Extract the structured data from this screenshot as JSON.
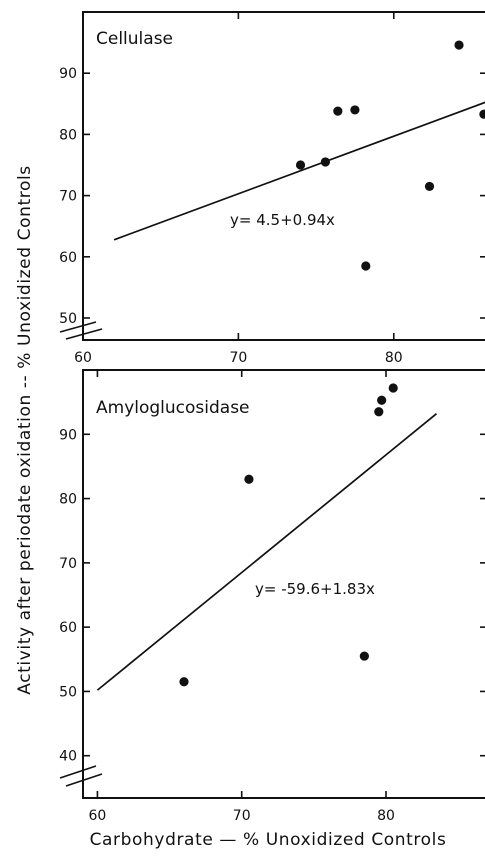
{
  "chart_data": [
    {
      "type": "scatter",
      "title": "Cellulase",
      "xlabel": "",
      "ylabel": "",
      "xlim": [
        60,
        86
      ],
      "ylim": [
        50,
        100
      ],
      "xticks": [
        60,
        70,
        80
      ],
      "yticks": [
        50,
        60,
        70,
        80,
        90
      ],
      "points": [
        {
          "x": 74.0,
          "y": 75.0
        },
        {
          "x": 75.6,
          "y": 75.5
        },
        {
          "x": 76.4,
          "y": 83.8
        },
        {
          "x": 77.5,
          "y": 84.0
        },
        {
          "x": 78.2,
          "y": 58.5
        },
        {
          "x": 82.3,
          "y": 71.5
        },
        {
          "x": 84.2,
          "y": 94.6
        },
        {
          "x": 85.8,
          "y": 83.3
        }
      ],
      "fit": {
        "equation": "y= 4.5+0.94x",
        "intercept": 4.5,
        "slope": 0.94,
        "x_range": [
          62,
          86
        ]
      },
      "axis_break": true,
      "grid": false
    },
    {
      "type": "scatter",
      "title": "Amyloglucosidase",
      "xlabel": "",
      "ylabel": "",
      "xlim": [
        59,
        87
      ],
      "ylim": [
        30,
        100
      ],
      "xticks": [
        60,
        70,
        80
      ],
      "yticks": [
        40,
        50,
        60,
        70,
        80,
        90
      ],
      "points": [
        {
          "x": 66.0,
          "y": 51.5
        },
        {
          "x": 70.5,
          "y": 83.0
        },
        {
          "x": 78.5,
          "y": 55.5
        },
        {
          "x": 79.5,
          "y": 93.5
        },
        {
          "x": 79.7,
          "y": 95.3
        },
        {
          "x": 80.5,
          "y": 97.2
        }
      ],
      "fit": {
        "equation": "y= -59.6+1.83x",
        "intercept": -59.6,
        "slope": 1.83,
        "x_range": [
          60,
          83.5
        ]
      },
      "axis_break": true,
      "grid": false
    }
  ],
  "figure": {
    "ylabel": "Activity after periodate oxidation -- % Unoxidized Controls",
    "xlabel": "Carbohydrate — % Unoxidized Controls"
  }
}
